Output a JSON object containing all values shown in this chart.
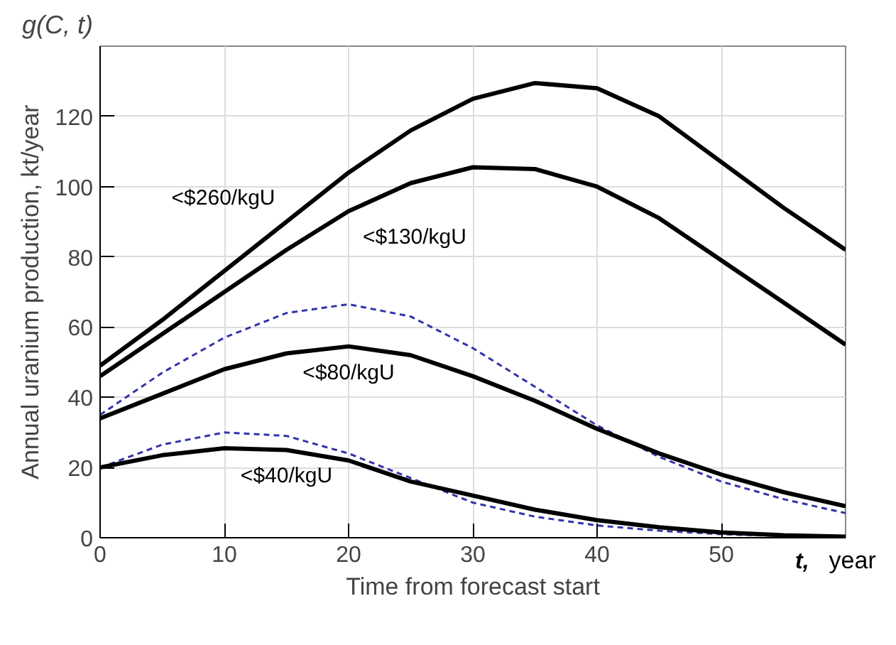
{
  "chart_data": {
    "type": "line",
    "xlabel": "Time from forecast start",
    "ylabel": "Annual uranium production, kt/year",
    "annotations": [
      "g(C, t)",
      "t,",
      "year"
    ],
    "x": [
      0,
      5,
      10,
      15,
      20,
      25,
      30,
      35,
      40,
      45,
      50,
      55,
      60
    ],
    "series": [
      {
        "name": "<$260/kgU",
        "color": "#000000",
        "line_style": "solid",
        "values": [
          49,
          62,
          76,
          90,
          104,
          116,
          125,
          129.5,
          128,
          120,
          107,
          94,
          82
        ]
      },
      {
        "name": "<$130/kgU",
        "color": "#000000",
        "line_style": "solid",
        "values": [
          46,
          58,
          70,
          82,
          93,
          101,
          105.5,
          105,
          100,
          91,
          79,
          67,
          55
        ]
      },
      {
        "color": "#3333aa",
        "line_style": "dashed",
        "values": [
          35,
          47,
          57,
          64,
          66.5,
          63,
          54,
          43,
          32,
          23,
          16,
          11,
          7
        ]
      },
      {
        "name": "<$80/kgU",
        "color": "#000000",
        "line_style": "solid",
        "values": [
          34,
          41,
          48,
          52.5,
          54.5,
          52,
          46,
          39,
          31,
          24,
          18,
          13,
          9
        ]
      },
      {
        "color": "#3333aa",
        "line_style": "dashed",
        "values": [
          20,
          26.5,
          30,
          29,
          24,
          17,
          10,
          6,
          3.5,
          2,
          1,
          0.5,
          0.2
        ]
      },
      {
        "name": "<$40/kgU",
        "color": "#000000",
        "line_style": "solid",
        "values": [
          20,
          23.5,
          25.5,
          25,
          22,
          16,
          12,
          8,
          5,
          3,
          1.5,
          0.7,
          0.3
        ]
      }
    ],
    "xlim": [
      0,
      60
    ],
    "ylim": [
      0,
      140
    ],
    "xticks": [
      0,
      10,
      20,
      30,
      40,
      50
    ],
    "yticks": [
      0,
      20,
      40,
      60,
      80,
      100,
      120
    ],
    "grid": true,
    "marker": "none"
  }
}
